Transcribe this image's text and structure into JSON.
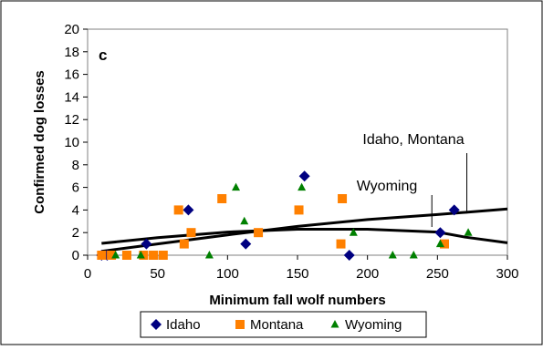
{
  "chart_data": {
    "type": "scatter",
    "panel_label": "c",
    "xlabel": "Minimum fall wolf numbers",
    "ylabel": "Confirmed dog losses",
    "xlim": [
      0,
      300
    ],
    "ylim": [
      0,
      20
    ],
    "x_ticks": [
      0,
      50,
      100,
      150,
      200,
      250,
      300
    ],
    "y_ticks": [
      0,
      2,
      4,
      6,
      8,
      10,
      12,
      14,
      16,
      18,
      20
    ],
    "grid": false,
    "legend_position": "bottom",
    "series": [
      {
        "name": "Idaho",
        "marker": "diamond",
        "color": "#000080",
        "points": [
          [
            10,
            0
          ],
          [
            14,
            0
          ],
          [
            42,
            1
          ],
          [
            72,
            4
          ],
          [
            113,
            1
          ],
          [
            155,
            7
          ],
          [
            187,
            0
          ],
          [
            252,
            2
          ],
          [
            262,
            4
          ]
        ]
      },
      {
        "name": "Montana",
        "marker": "square",
        "color": "#ff8000",
        "points": [
          [
            10,
            0
          ],
          [
            17,
            0
          ],
          [
            28,
            0
          ],
          [
            40,
            0
          ],
          [
            47,
            0
          ],
          [
            54,
            0
          ],
          [
            65,
            4
          ],
          [
            69,
            1
          ],
          [
            74,
            2
          ],
          [
            96,
            5
          ],
          [
            122,
            2
          ],
          [
            151,
            4
          ],
          [
            181,
            1
          ],
          [
            182,
            5
          ],
          [
            255,
            1
          ]
        ]
      },
      {
        "name": "Wyoming",
        "marker": "triangle",
        "color": "#008000",
        "points": [
          [
            20,
            0
          ],
          [
            38,
            0
          ],
          [
            87,
            0
          ],
          [
            106,
            6
          ],
          [
            112,
            3
          ],
          [
            153,
            6
          ],
          [
            190,
            2
          ],
          [
            218,
            0
          ],
          [
            233,
            0
          ],
          [
            252,
            1
          ],
          [
            272,
            2
          ]
        ]
      }
    ],
    "trend_lines": [
      {
        "color": "#000000",
        "points": [
          [
            10,
            0.35
          ],
          [
            50,
            1.0
          ],
          [
            100,
            1.8
          ],
          [
            150,
            2.55
          ],
          [
            200,
            3.15
          ],
          [
            250,
            3.6
          ],
          [
            300,
            4.1
          ]
        ]
      },
      {
        "color": "#000000",
        "points": [
          [
            10,
            1.05
          ],
          [
            50,
            1.55
          ],
          [
            100,
            2.05
          ],
          [
            150,
            2.3
          ],
          [
            200,
            2.3
          ],
          [
            250,
            2.05
          ],
          [
            270,
            1.6
          ],
          [
            300,
            1.1
          ]
        ]
      }
    ],
    "annotations": [
      {
        "text": "Idaho, Montana",
        "target": [
          271,
          3.7
        ]
      },
      {
        "text": "Wyoming",
        "target": [
          246,
          2.5
        ]
      }
    ]
  }
}
